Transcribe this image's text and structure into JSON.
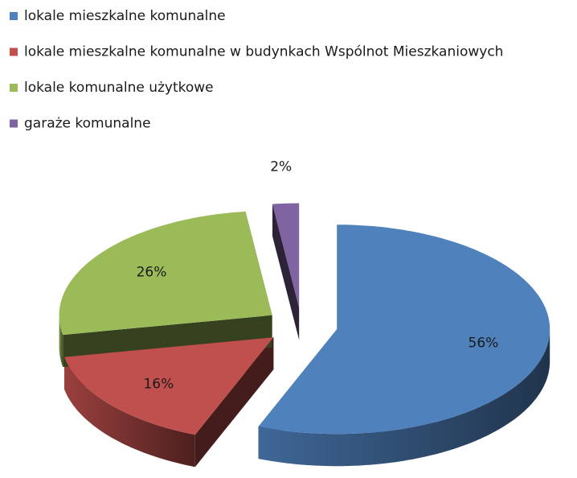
{
  "chart_data": {
    "type": "pie3d",
    "categories": [
      "lokale mieszkalne komunalne",
      "lokale mieszkalne komunalne w budynkach Wspólnot Mieszkaniowych",
      "lokale komunalne użytkowe",
      "garaże komunalne"
    ],
    "values": [
      56,
      16,
      26,
      2
    ],
    "value_labels": [
      "56%",
      "16%",
      "26%",
      "2%"
    ],
    "colors": [
      "#4f81bd",
      "#c0504d",
      "#9bbb59",
      "#8064a2"
    ],
    "legend": "top-left"
  }
}
